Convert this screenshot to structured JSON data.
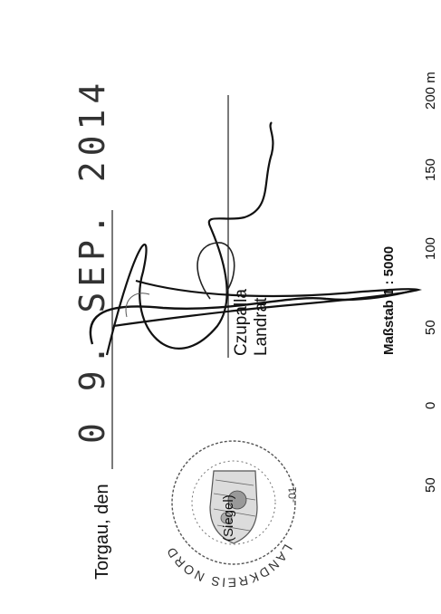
{
  "place_date": {
    "label": "Torgau, den",
    "date_stamp": "0 9. SEP. 2014"
  },
  "signatory": {
    "name": "Czupalla",
    "title": "Landrat"
  },
  "seal": {
    "ring_text": "LANDKREIS NORDSACHSEN",
    "mark": "(Siegel)",
    "suffix": "-01-",
    "colors": {
      "ink": "#444444"
    }
  },
  "scale_bar": {
    "title": "Maßstab 1 : 5000",
    "ticks": [
      "50",
      "0",
      "50",
      "100",
      "150",
      "200 m"
    ]
  }
}
